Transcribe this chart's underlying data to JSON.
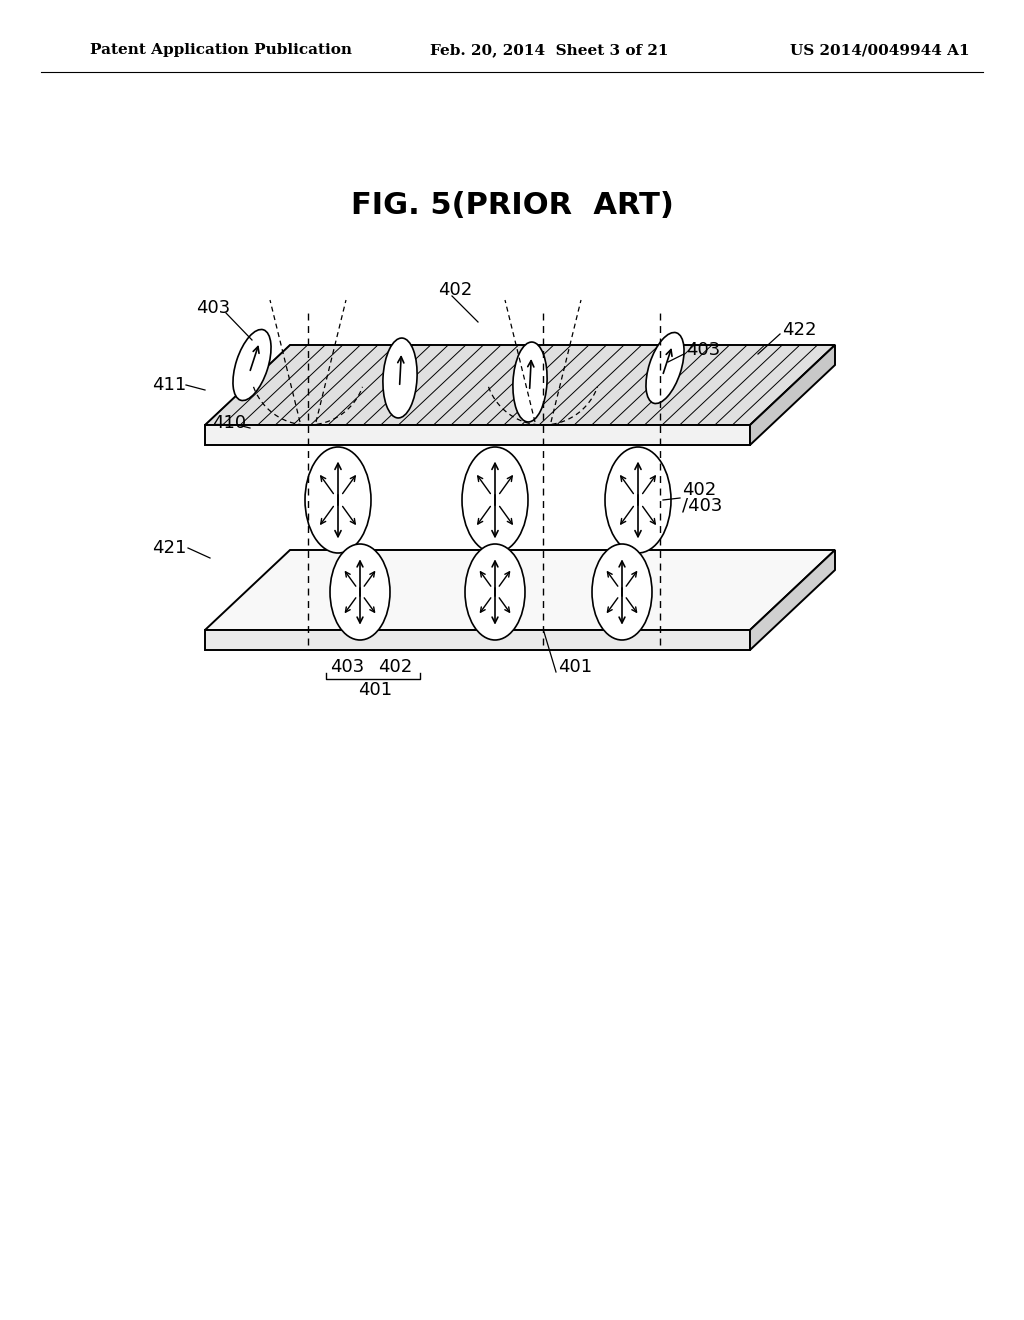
{
  "title": "FIG. 5(PRIOR  ART)",
  "header_left": "Patent Application Publication",
  "header_center": "Feb. 20, 2014  Sheet 3 of 21",
  "header_right": "US 2014/0049944 A1",
  "bg_color": "#ffffff",
  "text_color": "#000000",
  "fig_title_fontsize": 22,
  "header_fontsize": 11
}
